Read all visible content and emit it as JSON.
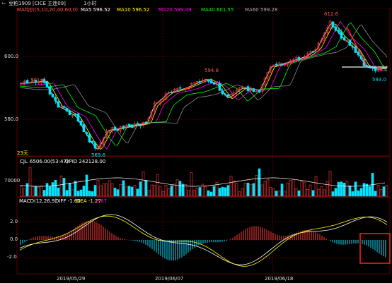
{
  "header": {
    "title": "豆粕1909 [CICE 主连09]",
    "period": "1小时",
    "icons": [
      "back-arrow-icon"
    ]
  },
  "ma_legend": {
    "label": "MA均价(5,10,20,40,60,0)",
    "items": [
      {
        "label": "MA5 596.52",
        "color": "#ffffff"
      },
      {
        "label": "MA10 596.52",
        "color": "#ffff00"
      },
      {
        "label": "MA20 599.49",
        "color": "#ff00ff"
      },
      {
        "label": "MA40 601.55",
        "color": "#00ff00"
      },
      {
        "label": "MA60 599.28",
        "color": "#aaaaaa"
      }
    ]
  },
  "price_axis": {
    "labels": [
      "600.0",
      "580.0"
    ]
  },
  "price_annotations": {
    "high": "612.6",
    "mid_high": "594.8",
    "left": "591.6",
    "low": "569.6",
    "last": "593.0",
    "count": "23",
    "count_unit": "天"
  },
  "volume_legend": {
    "label": "CJL",
    "value": "6506.00(53:47)",
    "opid": "OPID 242128.00"
  },
  "volume_axis": {
    "labels": [
      "70000"
    ]
  },
  "macd_legend": {
    "label": "MACD(12,26,9)",
    "diff": "DIFF -1.60",
    "dea": "DEA -1.27",
    "macd": "-0.67"
  },
  "macd_axis": {
    "labels": [
      "2.0",
      "0.0",
      "-2.0"
    ]
  },
  "date_axis": {
    "labels": [
      "2019/05/29",
      "2019/06/07",
      "2019/06/18"
    ]
  },
  "colors": {
    "up": "#ff3b3b",
    "down": "#00e5ff",
    "grid": "#5a0000",
    "highlight_box": "#ff2020"
  }
}
